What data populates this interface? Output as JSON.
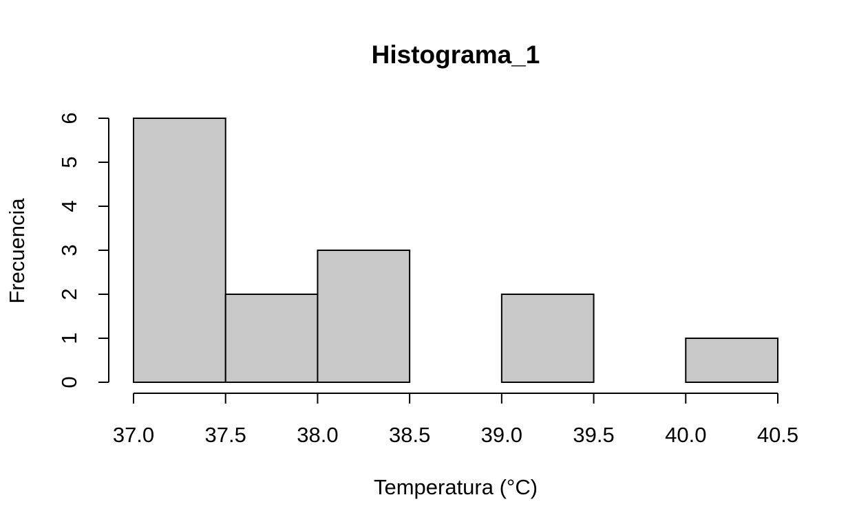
{
  "chart_data": {
    "type": "bar",
    "title": "Histograma_1",
    "xlabel": "Temperatura (°C)",
    "ylabel": "Frecuencia",
    "bins": [
      {
        "from": 37.0,
        "to": 37.5,
        "count": 6
      },
      {
        "from": 37.5,
        "to": 38.0,
        "count": 2
      },
      {
        "from": 38.0,
        "to": 38.5,
        "count": 3
      },
      {
        "from": 38.5,
        "to": 39.0,
        "count": 0
      },
      {
        "from": 39.0,
        "to": 39.5,
        "count": 2
      },
      {
        "from": 39.5,
        "to": 40.0,
        "count": 0
      },
      {
        "from": 40.0,
        "to": 40.5,
        "count": 1
      }
    ],
    "xlim": [
      37.0,
      40.5
    ],
    "ylim": [
      0,
      6
    ],
    "x_ticks": [
      "37.0",
      "37.5",
      "38.0",
      "38.5",
      "39.0",
      "39.5",
      "40.0",
      "40.5"
    ],
    "y_ticks": [
      "0",
      "1",
      "2",
      "3",
      "4",
      "5",
      "6"
    ],
    "grid": false,
    "bar_color": "#c8c8c8",
    "edge_color": "#000000"
  }
}
